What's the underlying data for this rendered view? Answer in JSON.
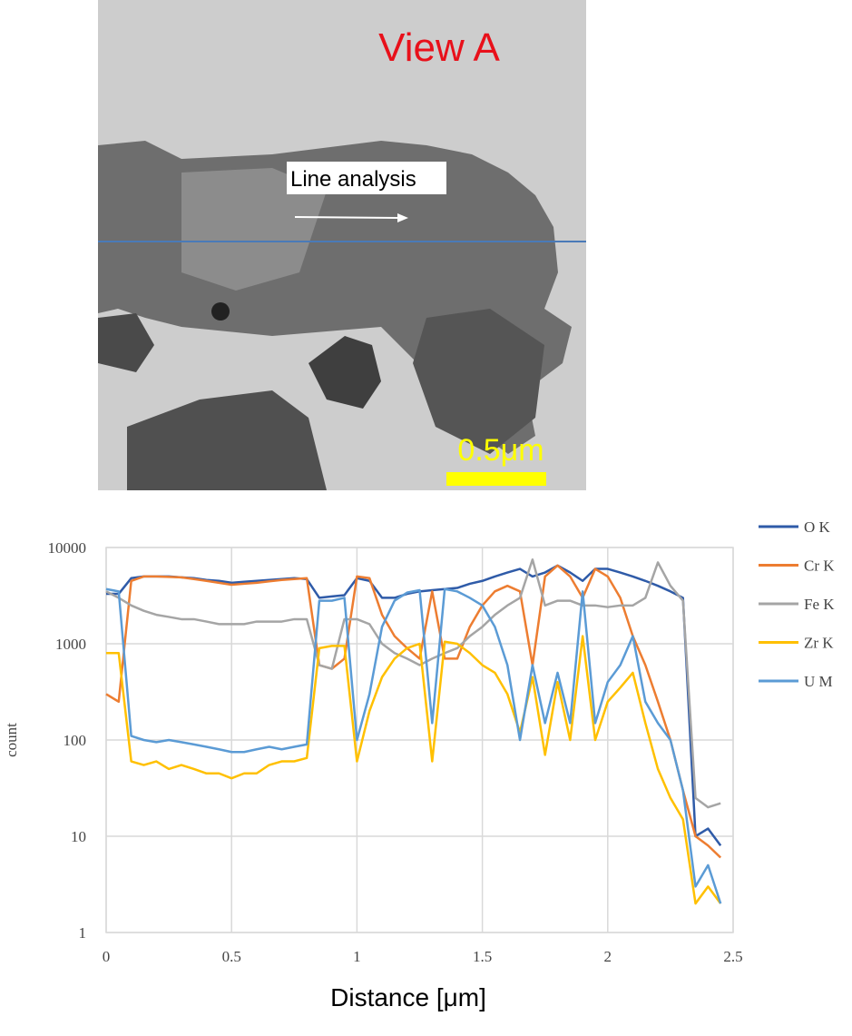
{
  "image": {
    "title": "View A",
    "annotation": "Line analysis",
    "scale_bar": "0.5μm"
  },
  "chart_data": {
    "type": "line",
    "x_label": "Distance [μm]",
    "y_label": "count",
    "log_y": true,
    "grid": true,
    "legend": "right",
    "xlim": [
      0,
      2.5
    ],
    "xticks": [
      0,
      0.5,
      1,
      1.5,
      2,
      2.5
    ],
    "ylim": [
      1,
      10000
    ],
    "yticks": [
      1,
      10,
      100,
      1000,
      10000
    ],
    "x": [
      0,
      0.05,
      0.1,
      0.15,
      0.2,
      0.25,
      0.3,
      0.35,
      0.4,
      0.45,
      0.5,
      0.55,
      0.6,
      0.65,
      0.7,
      0.75,
      0.8,
      0.85,
      0.9,
      0.95,
      1,
      1.05,
      1.1,
      1.15,
      1.2,
      1.25,
      1.3,
      1.35,
      1.4,
      1.45,
      1.5,
      1.55,
      1.6,
      1.65,
      1.7,
      1.75,
      1.8,
      1.85,
      1.9,
      1.95,
      2,
      2.05,
      2.1,
      2.15,
      2.2,
      2.25,
      2.3,
      2.35,
      2.4,
      2.45
    ],
    "series": [
      {
        "name": "O K",
        "color": "#2f5ba8",
        "values": [
          3300,
          3300,
          4800,
          5000,
          5000,
          5000,
          4900,
          4800,
          4600,
          4500,
          4300,
          4400,
          4500,
          4600,
          4700,
          4800,
          4700,
          3000,
          3100,
          3200,
          4800,
          4500,
          3000,
          3000,
          3300,
          3500,
          3600,
          3700,
          3800,
          4200,
          4500,
          5000,
          5500,
          6000,
          5000,
          5500,
          6500,
          5500,
          4500,
          6000,
          6000,
          5500,
          5000,
          4500,
          4000,
          3500,
          3000,
          10,
          12,
          8
        ]
      },
      {
        "name": "Cr K",
        "color": "#ed7d31",
        "values": [
          300,
          250,
          4500,
          5000,
          5000,
          4950,
          4900,
          4700,
          4500,
          4300,
          4100,
          4200,
          4300,
          4450,
          4600,
          4700,
          4800,
          600,
          550,
          700,
          5000,
          4800,
          2000,
          1200,
          900,
          700,
          3500,
          700,
          700,
          1500,
          2500,
          3500,
          4000,
          3500,
          600,
          5000,
          6500,
          5000,
          3000,
          6000,
          5000,
          3000,
          1200,
          600,
          250,
          100,
          30,
          10,
          8,
          6
        ]
      },
      {
        "name": "Fe K",
        "color": "#a5a5a5",
        "values": [
          3500,
          3000,
          2500,
          2200,
          2000,
          1900,
          1800,
          1800,
          1700,
          1600,
          1600,
          1600,
          1700,
          1700,
          1700,
          1800,
          1800,
          600,
          550,
          1800,
          1800,
          1600,
          1000,
          800,
          700,
          600,
          700,
          800,
          900,
          1200,
          1500,
          2000,
          2500,
          3000,
          7500,
          2500,
          2800,
          2800,
          2500,
          2500,
          2400,
          2500,
          2500,
          3000,
          7000,
          4000,
          2800,
          25,
          20,
          22
        ]
      },
      {
        "name": "Zr K",
        "color": "#ffc000",
        "values": [
          800,
          800,
          60,
          55,
          60,
          50,
          55,
          50,
          45,
          45,
          40,
          45,
          45,
          55,
          60,
          60,
          65,
          900,
          950,
          950,
          60,
          200,
          450,
          700,
          900,
          1000,
          60,
          1050,
          1000,
          800,
          600,
          500,
          300,
          120,
          450,
          70,
          400,
          100,
          1200,
          100,
          250,
          350,
          500,
          150,
          50,
          25,
          15,
          2,
          3,
          2
        ]
      },
      {
        "name": "U M",
        "color": "#5b9bd5",
        "values": [
          3700,
          3500,
          110,
          100,
          95,
          100,
          95,
          90,
          85,
          80,
          75,
          75,
          80,
          85,
          80,
          85,
          90,
          2800,
          2800,
          3000,
          100,
          300,
          1500,
          2800,
          3400,
          3600,
          150,
          3700,
          3500,
          3000,
          2500,
          1500,
          600,
          100,
          600,
          150,
          500,
          150,
          3500,
          150,
          400,
          600,
          1200,
          250,
          150,
          100,
          30,
          3,
          5,
          2
        ]
      }
    ]
  }
}
